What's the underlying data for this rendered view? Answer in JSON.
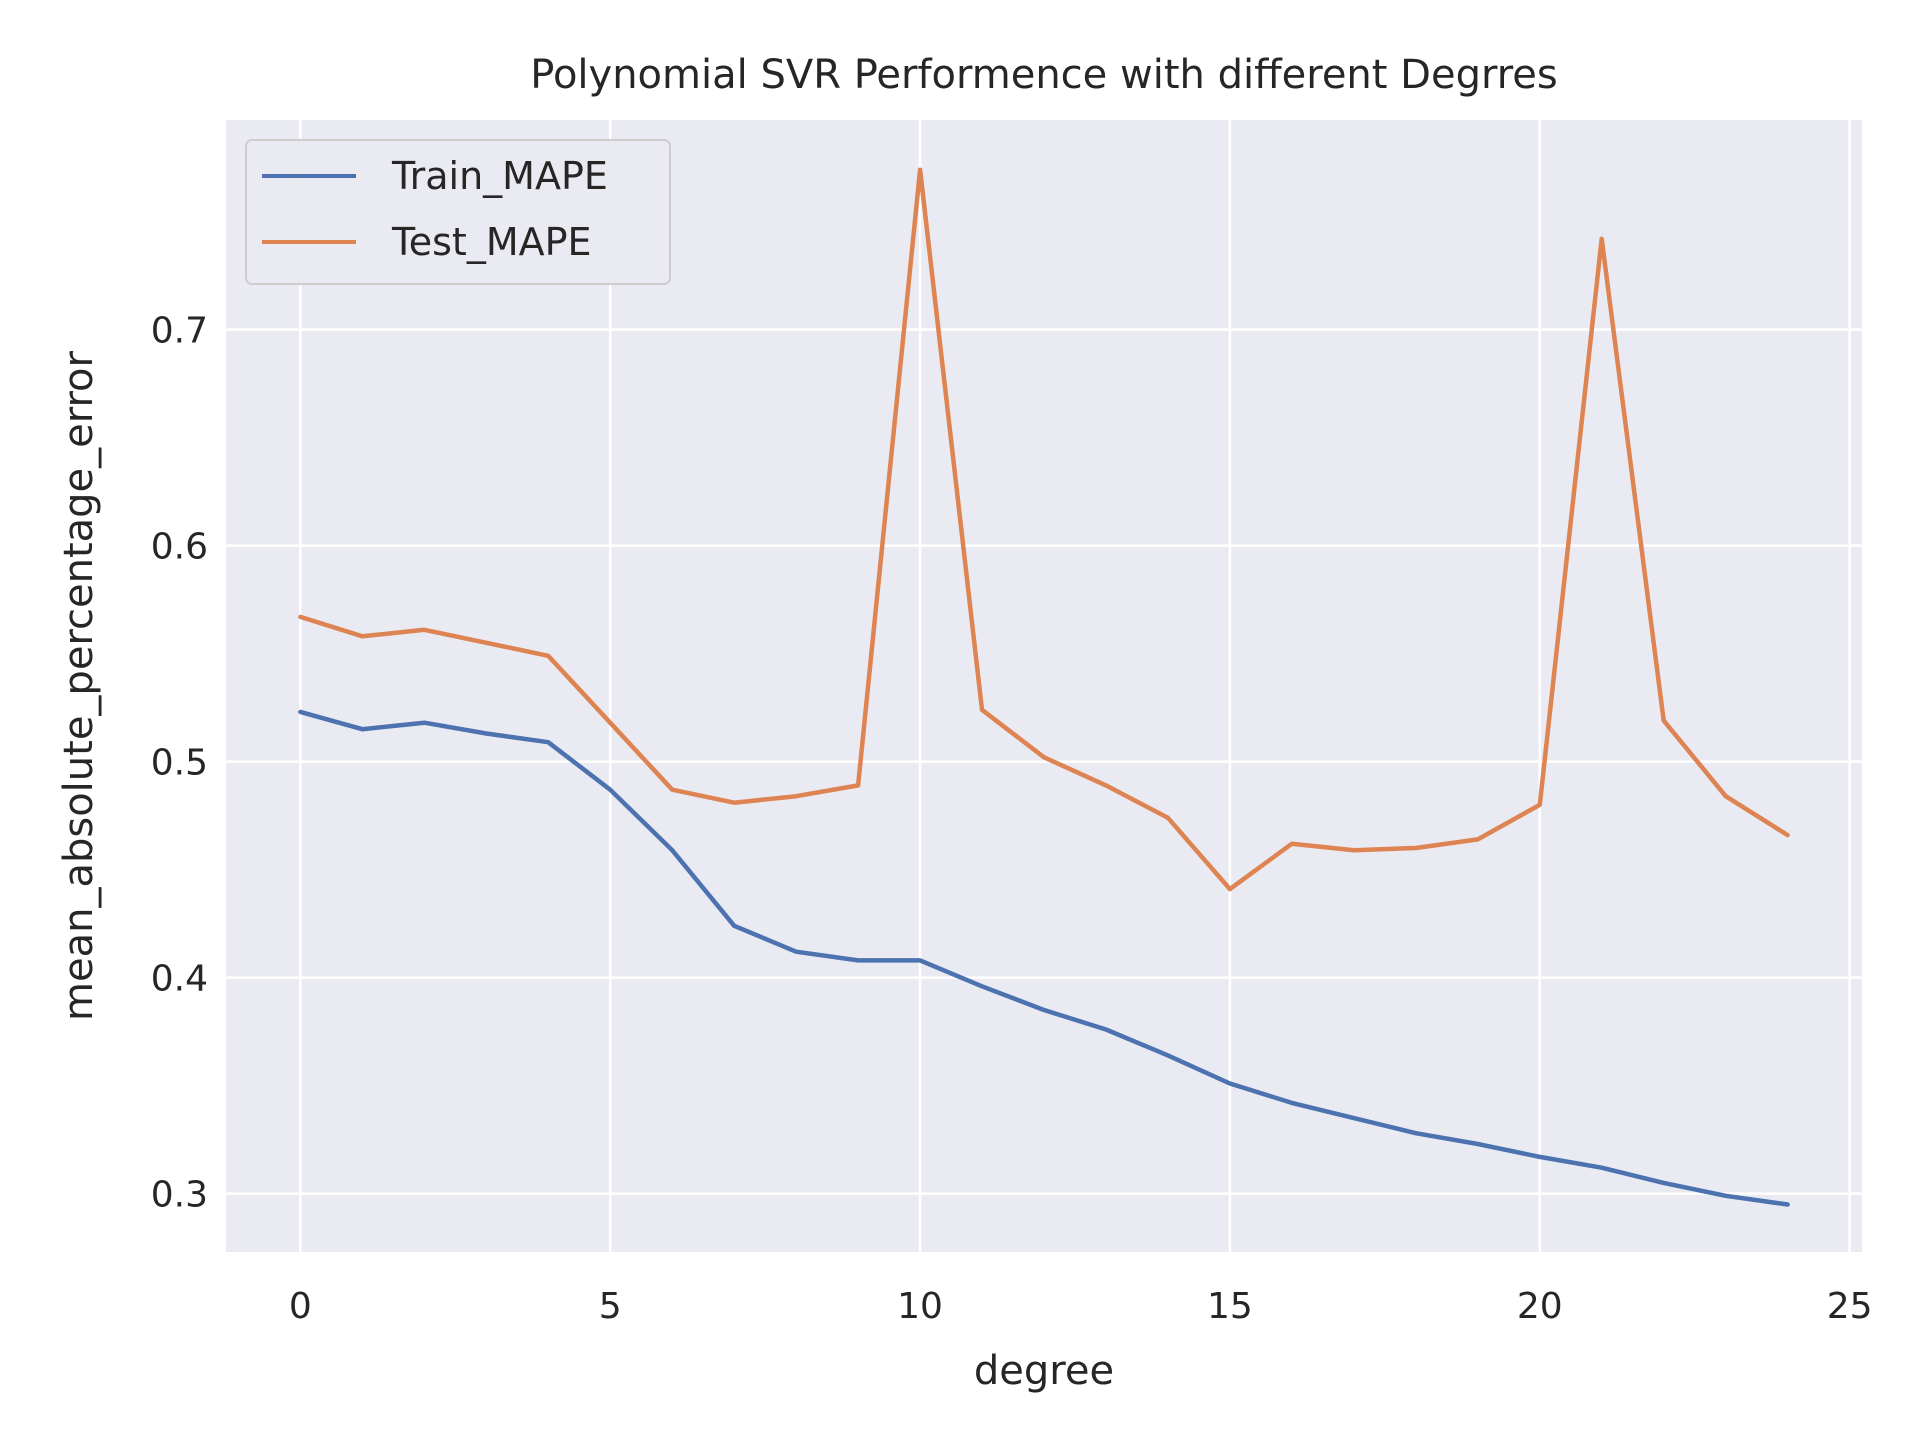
{
  "chart_data": {
    "type": "line",
    "title": "Polynomial SVR Performence with different Degrres",
    "xlabel": "degree",
    "ylabel": "mean_absolute_percentage_error",
    "xlim": [
      -1.2,
      25.2
    ],
    "ylim": [
      0.273,
      0.797
    ],
    "xticks": [
      0,
      5,
      10,
      15,
      20,
      25
    ],
    "yticks": [
      0.3,
      0.4,
      0.5,
      0.6,
      0.7
    ],
    "grid": true,
    "legend_position": "upper-left",
    "x": [
      0,
      1,
      2,
      3,
      4,
      5,
      6,
      7,
      8,
      9,
      10,
      11,
      12,
      13,
      14,
      15,
      16,
      17,
      18,
      19,
      20,
      21,
      22,
      23,
      24
    ],
    "series": [
      {
        "name": "Train_MAPE",
        "color": "#4c72b0",
        "values": [
          0.523,
          0.515,
          0.518,
          0.513,
          0.509,
          0.487,
          0.459,
          0.424,
          0.412,
          0.408,
          0.408,
          0.396,
          0.385,
          0.376,
          0.364,
          0.351,
          0.342,
          0.335,
          0.328,
          0.323,
          0.317,
          0.312,
          0.305,
          0.299,
          0.295
        ]
      },
      {
        "name": "Test_MAPE",
        "color": "#dd8452",
        "values": [
          0.567,
          0.558,
          0.561,
          0.555,
          0.549,
          0.518,
          0.487,
          0.481,
          0.484,
          0.489,
          0.774,
          0.524,
          0.502,
          0.489,
          0.474,
          0.441,
          0.462,
          0.459,
          0.46,
          0.464,
          0.48,
          0.742,
          0.519,
          0.484,
          0.466
        ]
      }
    ]
  }
}
